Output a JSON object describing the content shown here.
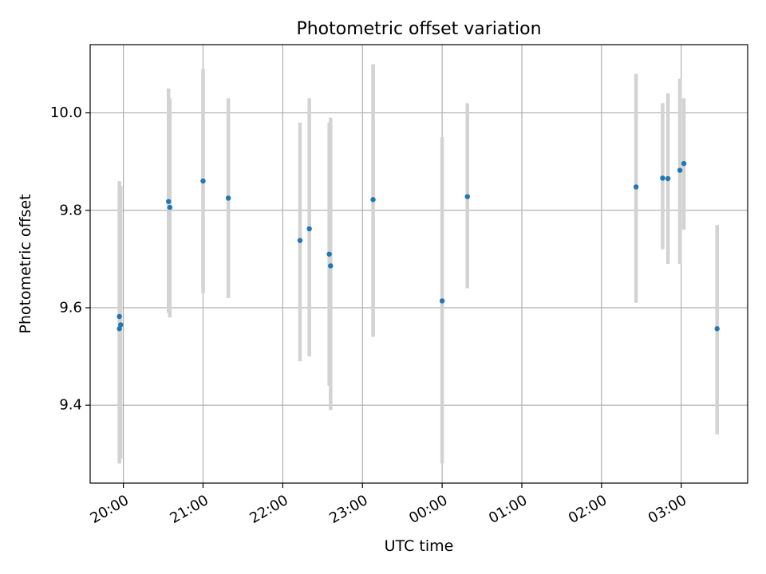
{
  "chart_data": {
    "type": "scatter",
    "title": "Photometric offset variation",
    "xlabel": "UTC time",
    "ylabel": "Photometric offset",
    "x_axis": "time",
    "xlim": [
      "19:35",
      "03:50"
    ],
    "x_ticks": [
      "20:00",
      "21:00",
      "22:00",
      "23:00",
      "00:00",
      "01:00",
      "02:00",
      "03:00"
    ],
    "ylim": [
      9.24,
      10.14
    ],
    "y_ticks": [
      "9.4",
      "9.6",
      "9.8",
      "10.0"
    ],
    "grid": true,
    "colors": {
      "marker": "#1f77b4",
      "errorbar": "#d3d3d3",
      "grid": "#b0b0b0"
    },
    "points": [
      {
        "t": "19:57",
        "y": 9.582,
        "lo": 9.3,
        "hi": 9.86
      },
      {
        "t": "19:57",
        "y": 9.557,
        "lo": 9.28,
        "hi": 9.84
      },
      {
        "t": "19:58",
        "y": 9.565,
        "lo": 9.29,
        "hi": 9.85
      },
      {
        "t": "20:34",
        "y": 9.818,
        "lo": 9.59,
        "hi": 10.05
      },
      {
        "t": "20:35",
        "y": 9.806,
        "lo": 9.58,
        "hi": 10.03
      },
      {
        "t": "21:00",
        "y": 9.86,
        "lo": 9.63,
        "hi": 10.09
      },
      {
        "t": "21:19",
        "y": 9.825,
        "lo": 9.62,
        "hi": 10.03
      },
      {
        "t": "22:13",
        "y": 9.738,
        "lo": 9.49,
        "hi": 9.98
      },
      {
        "t": "22:20",
        "y": 9.762,
        "lo": 9.5,
        "hi": 10.03
      },
      {
        "t": "22:35",
        "y": 9.71,
        "lo": 9.44,
        "hi": 9.98
      },
      {
        "t": "22:36",
        "y": 9.686,
        "lo": 9.39,
        "hi": 9.99
      },
      {
        "t": "23:08",
        "y": 9.822,
        "lo": 9.54,
        "hi": 10.1
      },
      {
        "t": "00:00",
        "y": 9.614,
        "lo": 9.28,
        "hi": 9.95
      },
      {
        "t": "00:19",
        "y": 9.828,
        "lo": 9.64,
        "hi": 10.02
      },
      {
        "t": "02:26",
        "y": 9.848,
        "lo": 9.61,
        "hi": 10.08
      },
      {
        "t": "02:46",
        "y": 9.866,
        "lo": 9.72,
        "hi": 10.02
      },
      {
        "t": "02:50",
        "y": 9.865,
        "lo": 9.69,
        "hi": 10.04
      },
      {
        "t": "02:59",
        "y": 9.882,
        "lo": 9.69,
        "hi": 10.07
      },
      {
        "t": "03:02",
        "y": 9.896,
        "lo": 9.76,
        "hi": 10.03
      },
      {
        "t": "03:27",
        "y": 9.557,
        "lo": 9.34,
        "hi": 9.77
      }
    ]
  }
}
